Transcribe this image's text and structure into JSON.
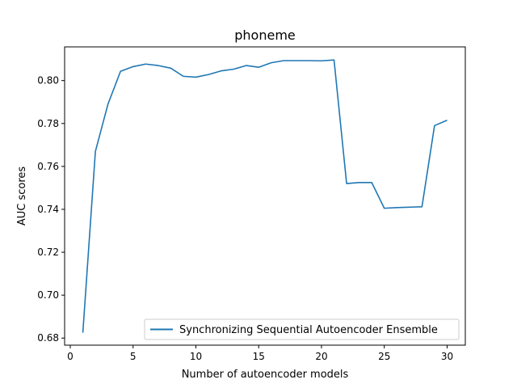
{
  "chart_data": {
    "type": "line",
    "title": "phoneme",
    "xlabel": "Number of autoencoder models",
    "ylabel": "AUC scores",
    "xlim": [
      -0.45,
      31.45
    ],
    "ylim": [
      0.6767,
      0.8157
    ],
    "xticks": [
      0,
      5,
      10,
      15,
      20,
      25,
      30
    ],
    "xtick_labels": [
      "0",
      "5",
      "10",
      "15",
      "20",
      "25",
      "30"
    ],
    "yticks": [
      0.68,
      0.7,
      0.72,
      0.74,
      0.76,
      0.78,
      0.8
    ],
    "ytick_labels": [
      "0.68",
      "0.70",
      "0.72",
      "0.74",
      "0.76",
      "0.78",
      "0.80"
    ],
    "grid": false,
    "legend_position": "lower right",
    "series": [
      {
        "name": "Synchronizing Sequential Autoencoder Ensemble",
        "color": "#1f77b4",
        "x": [
          1,
          2,
          3,
          4,
          5,
          6,
          7,
          8,
          9,
          10,
          11,
          12,
          13,
          14,
          15,
          16,
          17,
          18,
          19,
          20,
          21,
          22,
          23,
          24,
          25,
          26,
          27,
          28,
          29,
          30
        ],
        "y": [
          0.6825,
          0.767,
          0.789,
          0.8043,
          0.8065,
          0.8077,
          0.807,
          0.8058,
          0.802,
          0.8016,
          0.8028,
          0.8045,
          0.8053,
          0.807,
          0.8062,
          0.8083,
          0.8093,
          0.8093,
          0.8093,
          0.8092,
          0.8096,
          0.752,
          0.7525,
          0.7525,
          0.7405,
          0.7408,
          0.741,
          0.7412,
          0.779,
          0.7815
        ]
      }
    ]
  }
}
